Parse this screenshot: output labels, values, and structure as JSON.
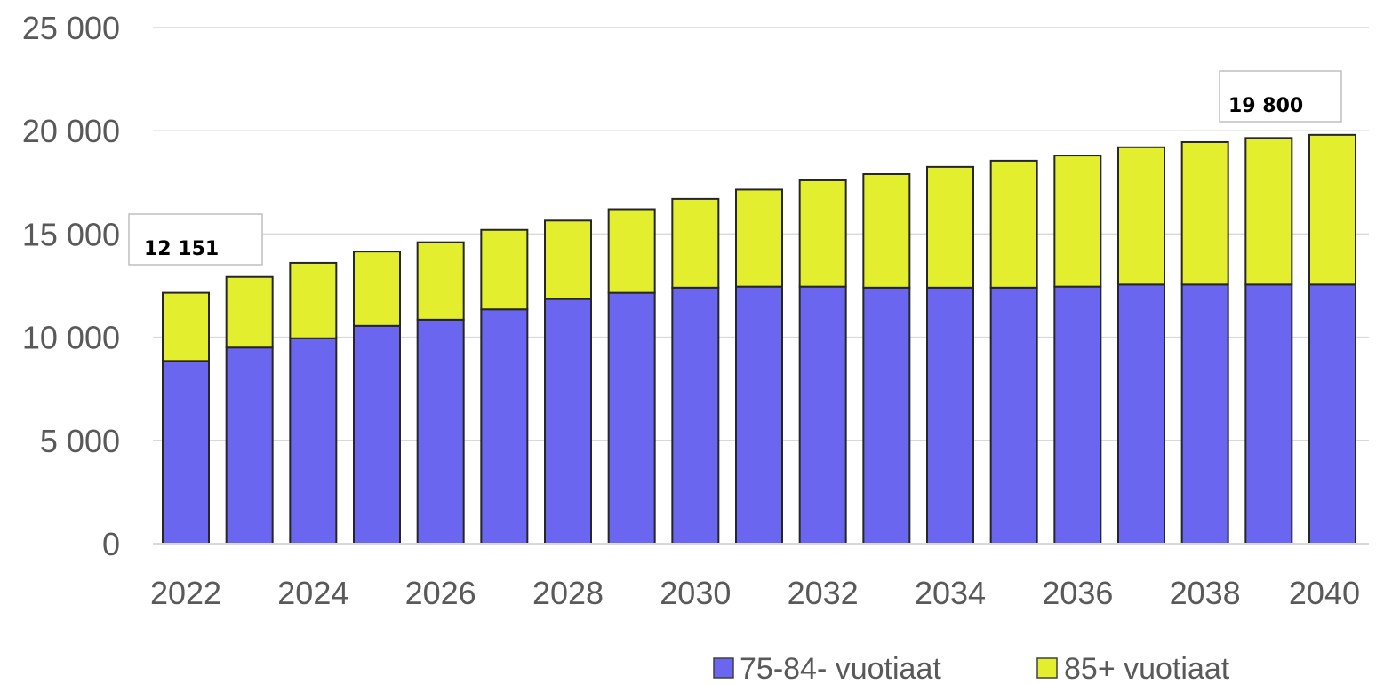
{
  "chart_data": {
    "type": "bar",
    "stacked": true,
    "categories": [
      "2022",
      "2023",
      "2024",
      "2025",
      "2026",
      "2027",
      "2028",
      "2029",
      "2030",
      "2031",
      "2032",
      "2033",
      "2034",
      "2035",
      "2036",
      "2037",
      "2038",
      "2039",
      "2040"
    ],
    "x_tick_labels": [
      "2022",
      "2024",
      "2026",
      "2028",
      "2030",
      "2032",
      "2034",
      "2036",
      "2038",
      "2040"
    ],
    "y_tick_labels": [
      "0",
      "5 000",
      "10 000",
      "15 000",
      "20 000",
      "25 000"
    ],
    "ylim": [
      0,
      25000
    ],
    "grid": true,
    "legend_position": "bottom-right",
    "series": [
      {
        "name": "75-84- vuotiaat",
        "color": "#6a66f0",
        "values": [
          8850,
          9500,
          9950,
          10550,
          10850,
          11350,
          11850,
          12150,
          12400,
          12450,
          12450,
          12400,
          12400,
          12400,
          12450,
          12550,
          12550,
          12550,
          12550
        ]
      },
      {
        "name": "85+ vuotiaat",
        "color": "#e3ee2f",
        "values": [
          3301,
          3420,
          3650,
          3600,
          3750,
          3850,
          3800,
          4050,
          4300,
          4700,
          5150,
          5500,
          5850,
          6150,
          6350,
          6650,
          6900,
          7100,
          7250
        ]
      }
    ],
    "annotations": [
      {
        "text": "12 151",
        "category": "2022"
      },
      {
        "text": "19 800",
        "category": "2040"
      }
    ]
  }
}
